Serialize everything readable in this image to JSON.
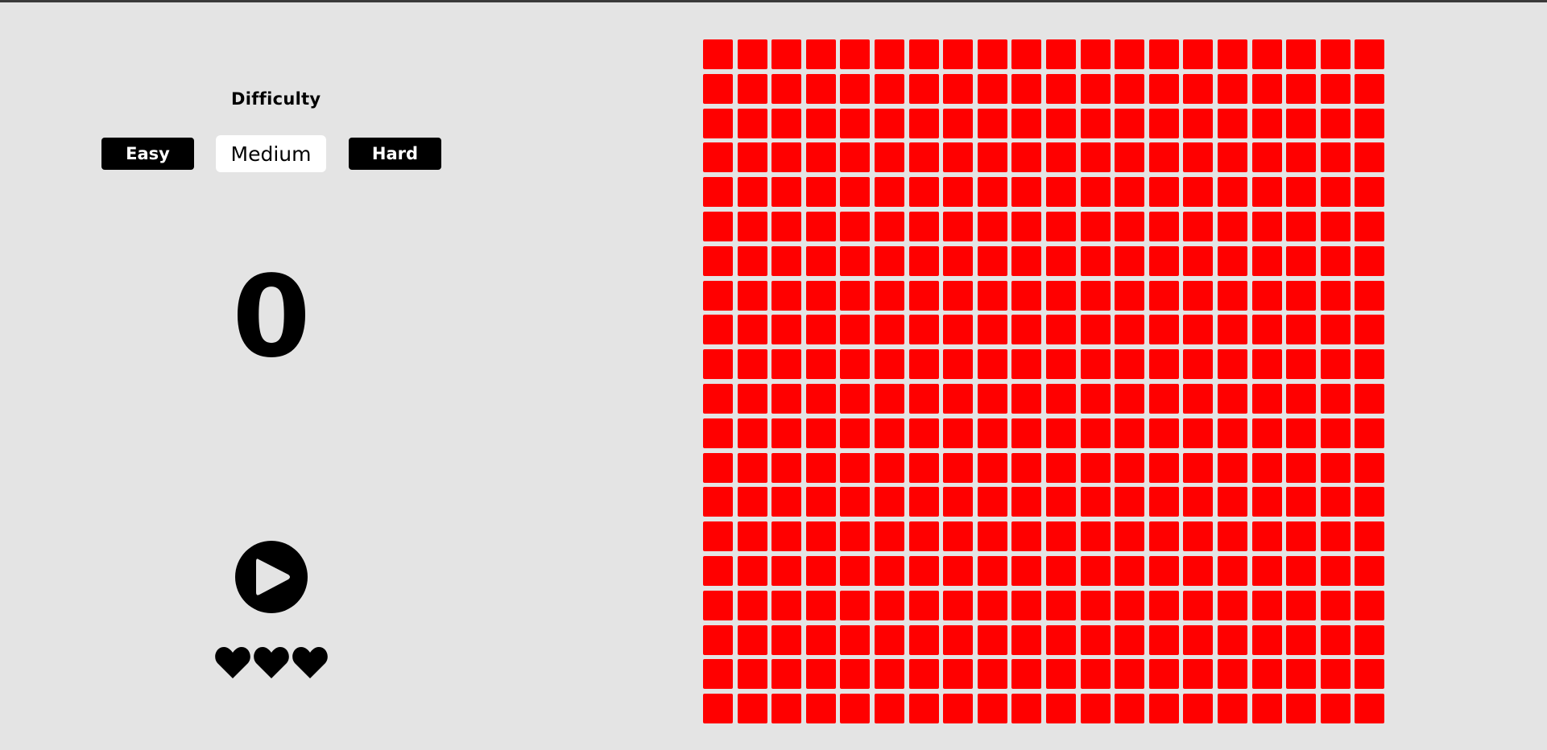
{
  "difficulty": {
    "title": "Difficulty",
    "options": [
      "Easy",
      "Medium",
      "Hard"
    ],
    "selected": "Medium"
  },
  "score": "0",
  "lives": 3,
  "board": {
    "rows": 20,
    "cols": 20,
    "cell_color": "#ff0000"
  },
  "colors": {
    "background": "#e4e4e4",
    "button_dark": "#000000",
    "button_selected": "#ffffff"
  },
  "icons": {
    "play": "play-icon",
    "life": "heart-icon"
  }
}
